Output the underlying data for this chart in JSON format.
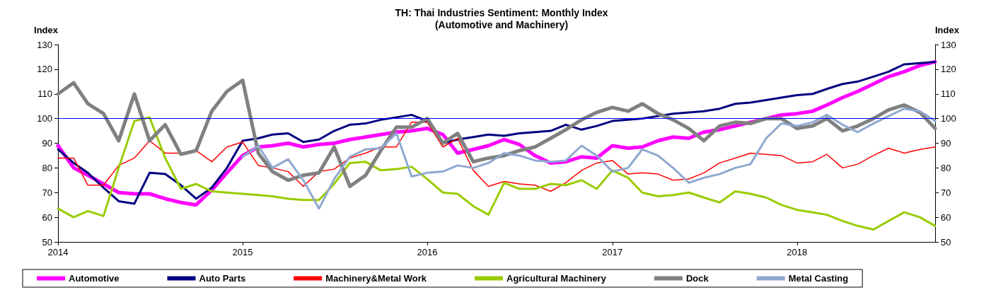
{
  "chart_data": {
    "type": "line",
    "title": "TH: Thai Industries Sentiment: Monthly Index\n(Automotive and Machinery)",
    "ylabel": "Index",
    "y2label": "Index",
    "x": [
      "2014-01",
      "2014-02",
      "2014-03",
      "2014-04",
      "2014-05",
      "2014-06",
      "2014-07",
      "2014-08",
      "2014-09",
      "2014-10",
      "2014-11",
      "2014-12",
      "2015-01",
      "2015-02",
      "2015-03",
      "2015-04",
      "2015-05",
      "2015-06",
      "2015-07",
      "2015-08",
      "2015-09",
      "2015-10",
      "2015-11",
      "2015-12",
      "2016-01",
      "2016-02",
      "2016-03",
      "2016-04",
      "2016-05",
      "2016-06",
      "2016-07",
      "2016-08",
      "2016-09",
      "2016-10",
      "2016-11",
      "2016-12",
      "2017-01",
      "2017-02",
      "2017-03",
      "2017-04",
      "2017-05",
      "2017-06",
      "2017-07",
      "2017-08",
      "2017-09",
      "2017-10",
      "2017-11",
      "2017-12",
      "2018-01",
      "2018-02",
      "2018-03",
      "2018-04",
      "2018-05",
      "2018-06",
      "2018-07",
      "2018-08",
      "2018-09",
      "2018-10"
    ],
    "series": [
      {
        "name": "Automotive",
        "color": "#ff00ff",
        "values": [
          89,
          80,
          77,
          73.5,
          70,
          69.5,
          69.5,
          67.5,
          66,
          65,
          71,
          78,
          85,
          88.5,
          89,
          90,
          88.5,
          89.5,
          90,
          91.5,
          92.5,
          93.5,
          94.5,
          95,
          96,
          93.5,
          86,
          87.5,
          89,
          91.5,
          89.5,
          85,
          82,
          82.5,
          84.5,
          84,
          89,
          88,
          88.5,
          91,
          92.5,
          92,
          94.5,
          95.5,
          97,
          98.5,
          100,
          101.5,
          102,
          103,
          105.5,
          108.5,
          111,
          114,
          117,
          119,
          121.5,
          123
        ]
      },
      {
        "name": "Auto Parts",
        "color": "#000080",
        "values": [
          87.5,
          82,
          78,
          72,
          66.5,
          65.5,
          78,
          77.5,
          73,
          67.5,
          72,
          80,
          91,
          92,
          93.5,
          94,
          90.5,
          91.5,
          95,
          97.5,
          98,
          99.5,
          100.5,
          101.5,
          99,
          90,
          91.5,
          92.5,
          93.5,
          93,
          94,
          94.5,
          95,
          97.5,
          95.5,
          97,
          99,
          99.5,
          100,
          101,
          102,
          102.5,
          103,
          104,
          106,
          106.5,
          107.5,
          108.5,
          109.5,
          110,
          112,
          114,
          115,
          117,
          119,
          122,
          122.5,
          123
        ]
      },
      {
        "name": "Machinery&Metal Work",
        "color": "#ff0000",
        "values": [
          84,
          84,
          73,
          73,
          81,
          84,
          91,
          86,
          86,
          87,
          82.5,
          88.5,
          90.5,
          81,
          80,
          78.5,
          72.5,
          78.5,
          79.5,
          84,
          86,
          88.5,
          88.5,
          98.5,
          98.5,
          88.5,
          92,
          79,
          72.5,
          74.5,
          73.5,
          73,
          70.5,
          74,
          79,
          82,
          83,
          77.5,
          78,
          77.5,
          75,
          75.5,
          78,
          82,
          84,
          86,
          85.5,
          85,
          82,
          82.5,
          85.5,
          80,
          81.5,
          85,
          88,
          86,
          87.5,
          88.5
        ]
      },
      {
        "name": "Agricultural Machinery",
        "color": "#99cc00",
        "values": [
          63.5,
          60,
          62.5,
          60.5,
          80,
          99,
          100.5,
          84,
          71.5,
          73.5,
          70.5,
          70,
          69.5,
          69,
          68.5,
          67.5,
          67,
          67,
          73.5,
          82,
          82.5,
          79,
          79.5,
          80.5,
          75.5,
          70,
          69.5,
          64.5,
          61,
          74,
          71.5,
          71.5,
          73.5,
          73,
          75,
          71.5,
          79,
          76,
          70,
          68.5,
          69,
          70,
          68,
          66,
          70.5,
          69.5,
          68,
          65,
          63,
          62,
          61,
          58.5,
          56.5,
          55,
          58.5,
          62,
          60,
          56.5
        ]
      },
      {
        "name": "Dock",
        "color": "#808080",
        "values": [
          110,
          114.5,
          106,
          102,
          91,
          110,
          91,
          97.5,
          85.5,
          87,
          103,
          111,
          115.5,
          86,
          78.5,
          75,
          77,
          78,
          88.5,
          72.5,
          77,
          87,
          96.5,
          96.5,
          100,
          90,
          94,
          82.5,
          84,
          85,
          87,
          88.5,
          92,
          95.5,
          99.5,
          102.5,
          104.5,
          103,
          106,
          102,
          99.5,
          96,
          91,
          97,
          98.5,
          98,
          100,
          100,
          96,
          97,
          100,
          95,
          97,
          100,
          103.5,
          105.5,
          102.5,
          96
        ]
      },
      {
        "name": "Metal Casting",
        "color": "#8fa8d0",
        "values": [
          null,
          null,
          null,
          null,
          null,
          null,
          null,
          null,
          null,
          null,
          null,
          null,
          84.5,
          89,
          80,
          83.5,
          75,
          63.5,
          75.5,
          84.5,
          87.5,
          88,
          94,
          76.5,
          78,
          78.5,
          81,
          80,
          82,
          86,
          85,
          83,
          82.5,
          83,
          89,
          85,
          78.5,
          80,
          87.5,
          85,
          80,
          74,
          76,
          77.5,
          80,
          81.5,
          92,
          98,
          97,
          98.5,
          101.5,
          97.5,
          94.5,
          98,
          101,
          104,
          103,
          99
        ]
      }
    ],
    "xlim": [
      "2014",
      "2018-10"
    ],
    "xticks": [
      "2014",
      "2015",
      "2016",
      "2017",
      "2018"
    ],
    "ylim": [
      50,
      130
    ],
    "yticks": [
      50,
      60,
      70,
      80,
      90,
      100,
      110,
      120,
      130
    ],
    "y2lim": [
      50,
      130
    ],
    "y2ticks": [
      50,
      60,
      70,
      80,
      90,
      100,
      110,
      120,
      130
    ],
    "ref_lines": [
      {
        "axis": "y",
        "value": 100,
        "color": "#0000ff"
      }
    ],
    "legend": "bottom",
    "grid": false,
    "marker": "none",
    "line_style": "solid"
  }
}
